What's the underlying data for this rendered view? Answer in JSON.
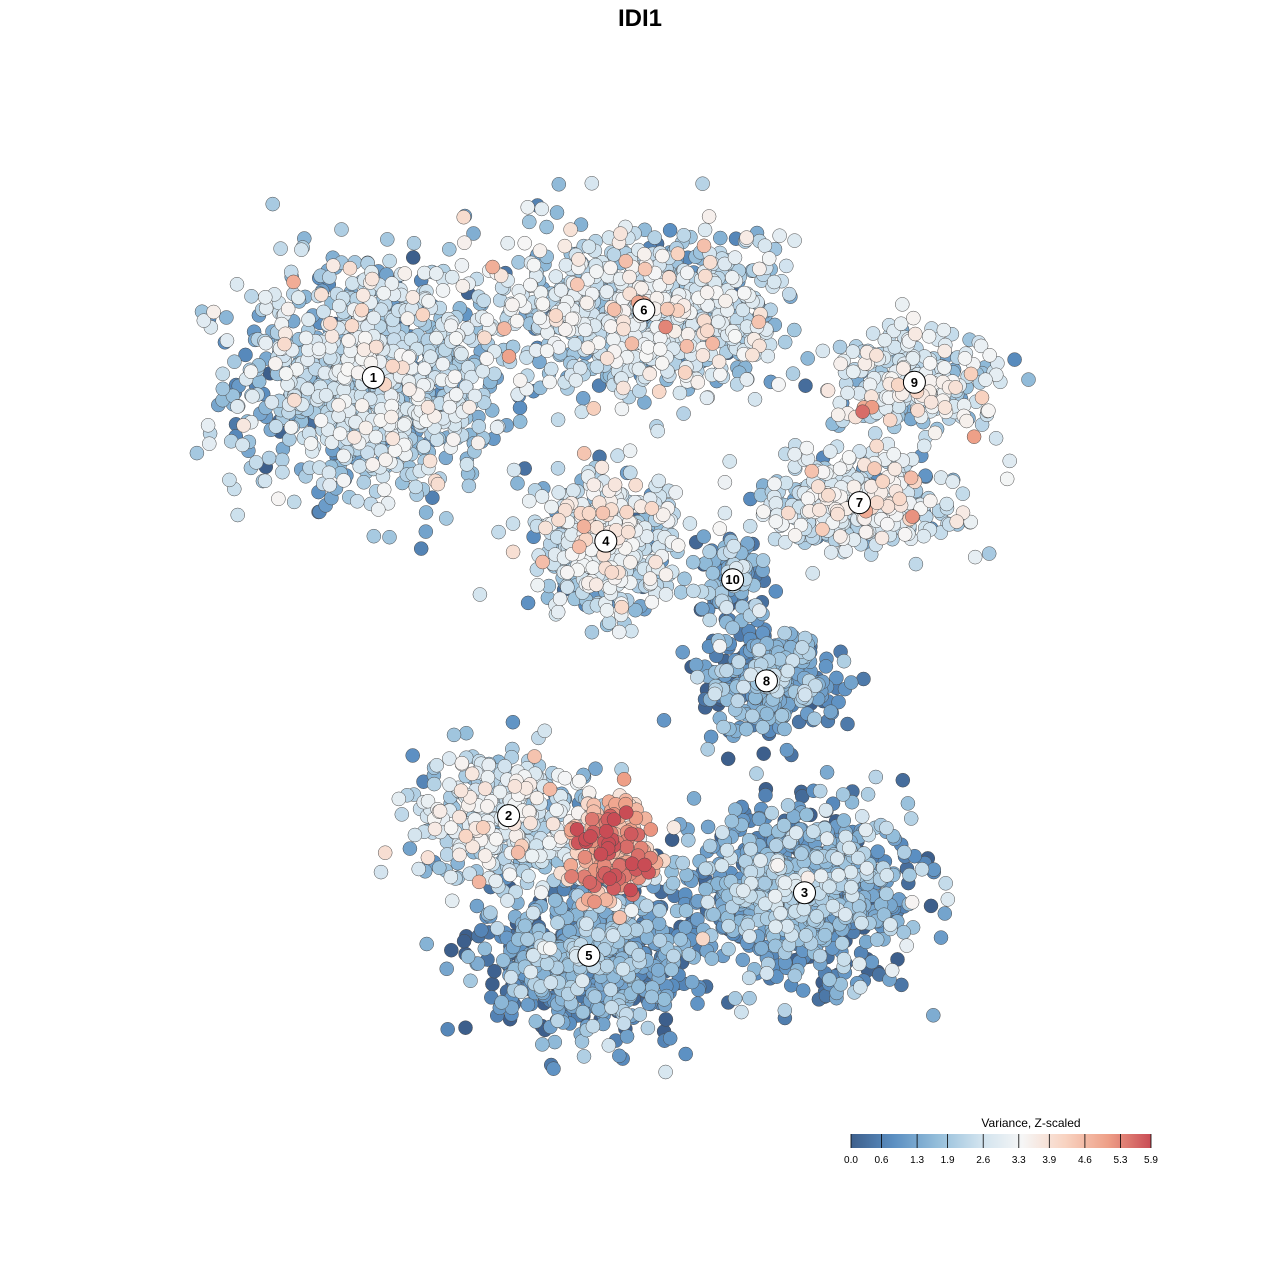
{
  "chart_data": {
    "type": "scatter",
    "title": "IDI1",
    "xlabel": "",
    "ylabel": "",
    "grid": false,
    "axes_visible": false,
    "legend": {
      "title": "Variance, Z-scaled",
      "placement": "bottom-right",
      "range": [
        0.0,
        5.9
      ],
      "ticks": [
        "0.0",
        "0.6",
        "1.3",
        "1.9",
        "2.6",
        "3.3",
        "3.9",
        "4.6",
        "5.3",
        "5.9"
      ],
      "colors": [
        "#3d5f8c",
        "#5b8fc2",
        "#93bdda",
        "#cfe2ee",
        "#f6f6f6",
        "#f8d3c1",
        "#ee9f87",
        "#c94c55"
      ]
    },
    "clusters": [
      {
        "label": "1",
        "x": -6.9,
        "y": 5.9,
        "sx": 2.1,
        "sy": 1.6,
        "n": 1100,
        "mean_variance": 2.1
      },
      {
        "label": "2",
        "x": -3.7,
        "y": -3.2,
        "sx": 1.5,
        "sy": 0.9,
        "n": 420,
        "mean_variance": 2.4
      },
      {
        "label": "3",
        "x": 3.3,
        "y": -4.8,
        "sx": 1.7,
        "sy": 1.1,
        "n": 900,
        "mean_variance": 1.2
      },
      {
        "label": "4",
        "x": -1.4,
        "y": 2.5,
        "sx": 1.1,
        "sy": 1.0,
        "n": 450,
        "mean_variance": 2.4
      },
      {
        "label": "5",
        "x": -1.8,
        "y": -6.1,
        "sx": 1.6,
        "sy": 1.0,
        "n": 800,
        "mean_variance": 1.0
      },
      {
        "label": "6",
        "x": -0.5,
        "y": 7.3,
        "sx": 2.2,
        "sy": 1.1,
        "n": 900,
        "mean_variance": 2.3
      },
      {
        "label": "7",
        "x": 4.6,
        "y": 3.3,
        "sx": 1.5,
        "sy": 0.6,
        "n": 420,
        "mean_variance": 2.6
      },
      {
        "label": "8",
        "x": 2.4,
        "y": -0.4,
        "sx": 1.0,
        "sy": 0.7,
        "n": 400,
        "mean_variance": 1.0
      },
      {
        "label": "9",
        "x": 5.9,
        "y": 5.8,
        "sx": 1.3,
        "sy": 0.7,
        "n": 280,
        "mean_variance": 2.5
      },
      {
        "label": "10",
        "x": 1.6,
        "y": 1.7,
        "sx": 0.5,
        "sy": 0.6,
        "n": 110,
        "mean_variance": 1.2
      },
      {
        "label": "",
        "x": -1.2,
        "y": -3.9,
        "sx": 0.6,
        "sy": 0.7,
        "n": 220,
        "mean_variance": 4.7
      }
    ],
    "x_range": [
      -11,
      11
    ],
    "y_range": [
      -9,
      10
    ]
  }
}
